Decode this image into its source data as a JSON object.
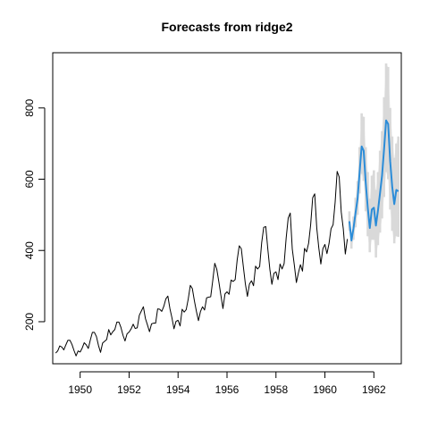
{
  "chart_data": {
    "type": "line",
    "title": "Forecasts from ridge2",
    "xlabel": "",
    "ylabel": "",
    "xlim": [
      1948.88,
      1963.12
    ],
    "ylim": [
      82,
      955
    ],
    "x_ticks": [
      1950,
      1952,
      1954,
      1956,
      1958,
      1960,
      1962
    ],
    "x_tick_labels": [
      "1950",
      "1952",
      "1954",
      "1956",
      "1958",
      "1960",
      "1962"
    ],
    "y_ticks": [
      200,
      400,
      600,
      800
    ],
    "y_tick_labels": [
      "200",
      "400",
      "600",
      "800"
    ],
    "grid": false,
    "legend": "none",
    "colors": {
      "history": "#000000",
      "forecast": "#2b8cd8",
      "interval": "#d9d9d9",
      "axes": "#000000"
    },
    "series": [
      {
        "role": "history",
        "start_year": 1949,
        "frequency": 12,
        "values": [
          112,
          118,
          132,
          129,
          121,
          135,
          148,
          148,
          136,
          119,
          104,
          118,
          115,
          126,
          141,
          135,
          125,
          149,
          170,
          170,
          158,
          133,
          114,
          140,
          145,
          150,
          178,
          163,
          172,
          178,
          199,
          199,
          184,
          162,
          146,
          166,
          171,
          180,
          193,
          181,
          183,
          218,
          230,
          242,
          209,
          191,
          172,
          194,
          196,
          196,
          236,
          235,
          229,
          243,
          264,
          272,
          237,
          211,
          180,
          201,
          204,
          188,
          235,
          227,
          234,
          264,
          302,
          293,
          259,
          229,
          203,
          229,
          242,
          233,
          267,
          269,
          270,
          315,
          364,
          347,
          312,
          274,
          237,
          278,
          284,
          277,
          317,
          313,
          318,
          374,
          413,
          405,
          355,
          306,
          271,
          306,
          315,
          301,
          356,
          348,
          355,
          422,
          465,
          467,
          404,
          347,
          305,
          336,
          340,
          318,
          362,
          348,
          363,
          435,
          491,
          505,
          404,
          359,
          310,
          337,
          360,
          342,
          406,
          396,
          420,
          472,
          548,
          559,
          463,
          407,
          362,
          405,
          417,
          391,
          419,
          461,
          472,
          535,
          622,
          606,
          508,
          461,
          390,
          432
        ]
      },
      {
        "role": "forecast",
        "start_year": 1961,
        "frequency": 12,
        "values": [
          482,
          428,
          462,
          505,
          545,
          620,
          692,
          680,
          590,
          520,
          463,
          515,
          520,
          470,
          512,
          560,
          610,
          685,
          765,
          755,
          650,
          578,
          530,
          570,
          566
        ],
        "lower": [
          455,
          405,
          430,
          465,
          500,
          560,
          615,
          595,
          510,
          440,
          395,
          430,
          430,
          380,
          415,
          450,
          490,
          550,
          620,
          600,
          515,
          455,
          420,
          440,
          438
        ],
        "upper": [
          510,
          452,
          495,
          548,
          595,
          690,
          785,
          775,
          690,
          620,
          545,
          610,
          625,
          570,
          620,
          680,
          735,
          830,
          925,
          915,
          800,
          720,
          660,
          700,
          720
        ]
      }
    ]
  }
}
